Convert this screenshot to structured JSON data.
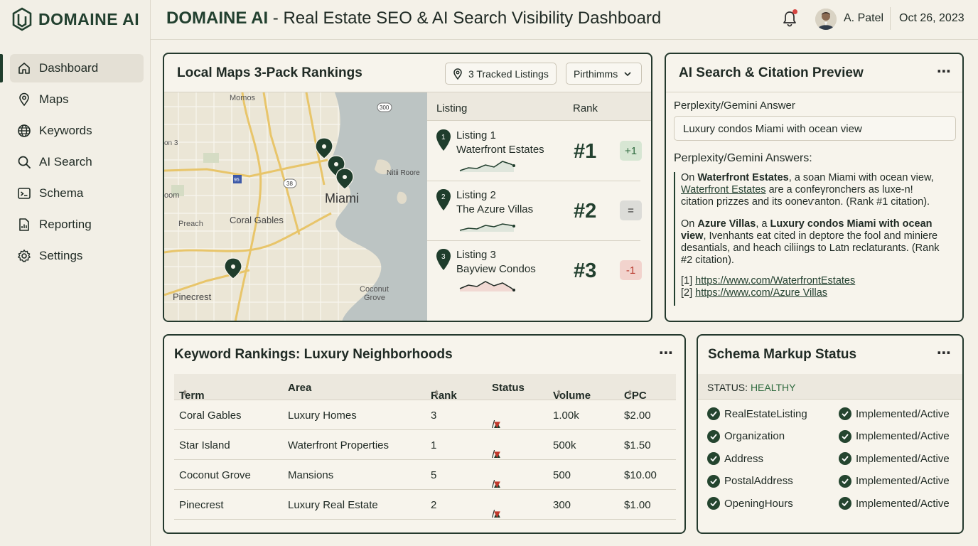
{
  "brand": {
    "name": "DOMAINE AI"
  },
  "sidebar": {
    "items": [
      {
        "label": "Dashboard",
        "icon": "home-icon",
        "active": true
      },
      {
        "label": "Maps",
        "icon": "map-pin-icon"
      },
      {
        "label": "Keywords",
        "icon": "globe-icon"
      },
      {
        "label": "AI Search",
        "icon": "search-icon"
      },
      {
        "label": "Schema",
        "icon": "terminal-icon"
      },
      {
        "label": "Reporting",
        "icon": "report-icon"
      },
      {
        "label": "Settings",
        "icon": "gear-icon"
      }
    ]
  },
  "header": {
    "title_brand": "DOMAINE AI",
    "title_rest": " - Real Estate SEO & AI Search Visibility Dashboard",
    "user": "A. Patel",
    "date": "Oct 26, 2023"
  },
  "maps": {
    "title": "Local Maps 3-Pack Rankings",
    "tracked": "3 Tracked Listings",
    "dropdown": "Pirthimms",
    "map_labels": {
      "momos": "Momos",
      "miami": "Miami",
      "coral": "Coral Gables",
      "preach": "Preach",
      "pinecrest": "Pinecrest",
      "coconut1": "Coconut",
      "coconut2": "Grove",
      "nitii": "Nitii Roore",
      "on3": "on 3",
      "room": "oom",
      "r300": "300",
      "r38": "38",
      "r95": "95"
    },
    "col_listing": "Listing",
    "col_rank": "Rank",
    "rows": [
      {
        "num": "1",
        "l1": "Listing 1",
        "l2": "Waterfront Estates",
        "rank": "#1",
        "change": "+1",
        "trend": "up"
      },
      {
        "num": "2",
        "l1": "Listing 2",
        "l2": "The Azure Villas",
        "rank": "#2",
        "change": "=",
        "trend": "flat"
      },
      {
        "num": "3",
        "l1": "Listing 3",
        "l2": "Bayview Condos",
        "rank": "#3",
        "change": "-1",
        "trend": "down"
      }
    ]
  },
  "ai": {
    "title": "AI Search & Citation Preview",
    "label1": "Perplexity/Gemini Answer",
    "query": "Luxury condos Miami with ocean view",
    "label2": "Perplexity/Gemini Answers:",
    "p1_a": "On ",
    "p1_b": "Waterfront Estates",
    "p1_c": ", a soan Miami with ocean view,",
    "p1_d": "Waterfront Estates",
    "p1_e": " are a confeγronchers as luxе-n!",
    "p1_f": "citation prizzes and its ooneѵanton. (Rank #1 citation).",
    "p2_a": "On ",
    "p2_b": "Azure Villas",
    "p2_c": ", a ",
    "p2_d": "Luxury condos Miami with ocean view",
    "p2_e": ", Ivenhants eat cited in deptore the fool and miniere desantials, and heach ciliings to Latn reclaturants. (Rank #2 citation).",
    "cite1_num": "[1] ",
    "cite1": "https://www.com/WaterfrontEstates",
    "cite2_num": "[2] ",
    "cite2": "https://www.com/Azure Villas"
  },
  "keywords": {
    "title": "Keyword Rankings: Luxury Neighborhoods",
    "headers": [
      "Term",
      "Area",
      "Rank",
      "Status",
      "Volume",
      "CPC"
    ],
    "rows": [
      {
        "term": "Coral Gables",
        "area": "Luxury Homes",
        "rank": "3",
        "volume": "1.00k",
        "cpc": "$2.00"
      },
      {
        "term": "Star Island",
        "area": "Waterfront Properties",
        "rank": "1",
        "volume": "500k",
        "cpc": "$1.50"
      },
      {
        "term": "Coconut Grove",
        "area": "Mansions",
        "rank": "5",
        "volume": "500",
        "cpc": "$10.00"
      },
      {
        "term": "Pinecrest",
        "area": "Luxury Real Estate",
        "rank": "2",
        "volume": "300",
        "cpc": "$1.00"
      }
    ],
    "status_up": "▲",
    "status_sep": "/",
    "status_down": "▼"
  },
  "schema": {
    "title": "Schema Markup Status",
    "status_label": "STATUS: ",
    "status_value": "HEALTHY",
    "rows": [
      {
        "name": "RealEstateListing",
        "state": "Implemented/Active"
      },
      {
        "name": "Organization",
        "state": "Implemented/Active"
      },
      {
        "name": "Address",
        "state": "Implemented/Active"
      },
      {
        "name": "PostalAddress",
        "state": "Implemented/Active"
      },
      {
        "name": "OpeningHours",
        "state": "Implemented/Active"
      }
    ]
  },
  "colors": {
    "accent": "#22402f",
    "background": "#f4f1e8",
    "positive": "#2f6b3f",
    "negative": "#c0392b"
  }
}
